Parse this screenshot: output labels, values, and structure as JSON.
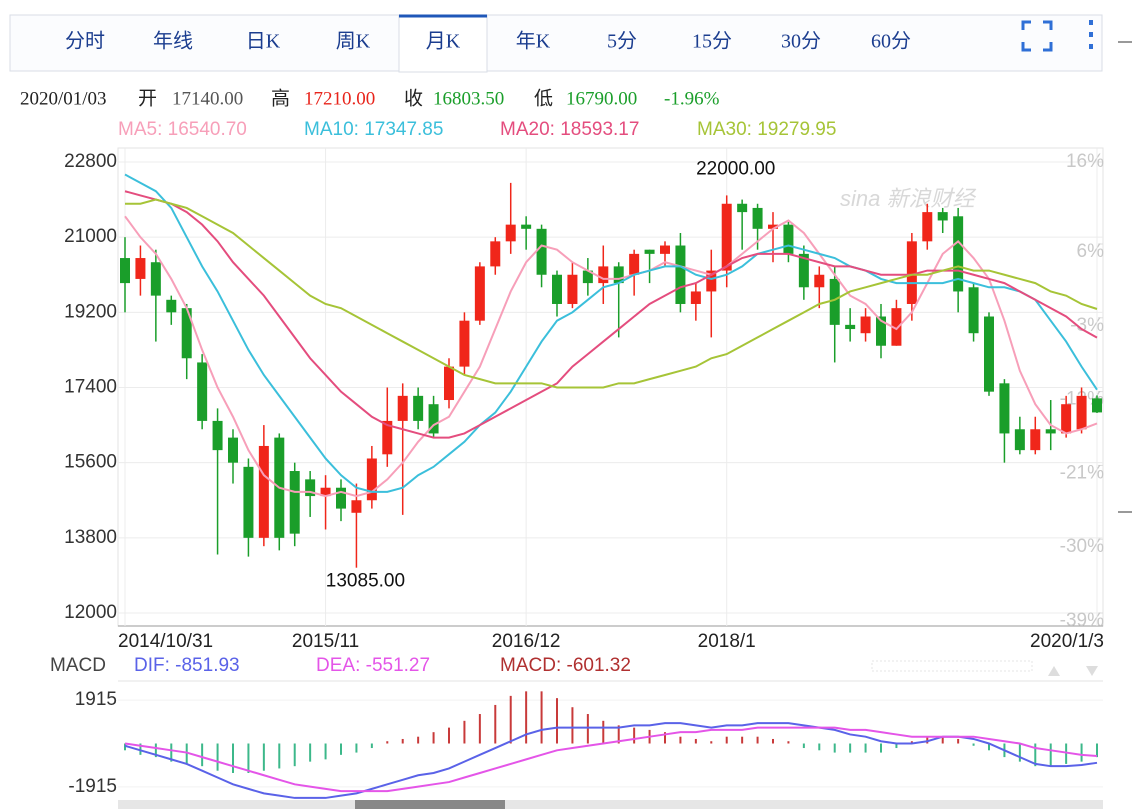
{
  "tabs": [
    "分时",
    "年线",
    "日K",
    "周K",
    "月K",
    "年K",
    "5分",
    "15分",
    "30分",
    "60分"
  ],
  "active_tab": 4,
  "info": {
    "date": "2020/01/03",
    "open_label": "开",
    "open": "17140.00",
    "high_label": "高",
    "high": "17210.00",
    "close_label": "收",
    "close": "16803.50",
    "low_label": "低",
    "low": "16790.00",
    "change": "-1.96%"
  },
  "watermark": "sina 新浪财经",
  "chart_data": [
    {
      "type": "candlestick",
      "categories": [
        "2014/10/31",
        null,
        null,
        null,
        null,
        null,
        null,
        null,
        null,
        null,
        null,
        null,
        null,
        "2015/11",
        null,
        null,
        null,
        null,
        null,
        null,
        null,
        null,
        null,
        null,
        null,
        null,
        "2016/12",
        null,
        null,
        null,
        null,
        null,
        null,
        null,
        null,
        null,
        null,
        null,
        null,
        "2018/1",
        null,
        null,
        null,
        null,
        null,
        null,
        null,
        null,
        null,
        null,
        null,
        null,
        null,
        null,
        null,
        null,
        null,
        null,
        null,
        null,
        null,
        null,
        null,
        "2020/1/3"
      ],
      "open": [
        20500,
        20000,
        20400,
        19500,
        19300,
        18000,
        16600,
        16200,
        15500,
        13800,
        16200,
        15400,
        15200,
        14800,
        15000,
        14400,
        14700,
        15800,
        16600,
        17200,
        17000,
        17100,
        17900,
        19000,
        20300,
        20900,
        21300,
        21200,
        20100,
        19400,
        20200,
        19900,
        20300,
        20100,
        20700,
        20600,
        20800,
        19400,
        19700,
        20200,
        21800,
        21700,
        21200,
        21300,
        20600,
        19800,
        20000,
        18900,
        18700,
        19100,
        18400,
        19400,
        20900,
        21600,
        21500,
        19800,
        19100,
        17500,
        16400,
        15900,
        16400,
        16300,
        16400,
        17140
      ],
      "high": [
        21000,
        20800,
        20700,
        19600,
        19400,
        18200,
        16900,
        16400,
        15700,
        16500,
        16300,
        15600,
        15400,
        15300,
        15200,
        15100,
        16000,
        17400,
        17500,
        17400,
        17200,
        18100,
        19200,
        20400,
        21000,
        22300,
        21500,
        21300,
        20200,
        20400,
        20500,
        20800,
        20400,
        20700,
        20700,
        20900,
        21100,
        19900,
        20700,
        22000,
        21900,
        21800,
        21600,
        21400,
        20800,
        20300,
        20300,
        19300,
        19300,
        19400,
        19500,
        21100,
        21800,
        21700,
        21700,
        19900,
        19200,
        17600,
        16700,
        16700,
        17100,
        17200,
        17400,
        17210
      ],
      "low": [
        19200,
        19600,
        18500,
        18900,
        17600,
        16400,
        13400,
        15100,
        13350,
        13600,
        13500,
        13600,
        14300,
        14000,
        14200,
        13085,
        14500,
        15500,
        14350,
        16400,
        16200,
        16900,
        17700,
        18900,
        20100,
        20600,
        20700,
        19800,
        19100,
        19300,
        19600,
        19400,
        18600,
        19600,
        19900,
        20300,
        19200,
        19000,
        18600,
        19800,
        20700,
        20700,
        20400,
        20400,
        19500,
        19300,
        18000,
        18500,
        18500,
        18100,
        18400,
        19000,
        20700,
        21100,
        19200,
        18500,
        17200,
        15600,
        15800,
        15800,
        15900,
        16200,
        16300,
        16790
      ],
      "close": [
        19900,
        20500,
        19600,
        19200,
        18100,
        16600,
        15900,
        15600,
        13800,
        16000,
        13800,
        13900,
        14800,
        15000,
        14500,
        14700,
        15700,
        16600,
        17200,
        16600,
        16300,
        17900,
        19000,
        20300,
        20900,
        21300,
        21200,
        20100,
        19400,
        20100,
        19900,
        20300,
        19900,
        20600,
        20600,
        20800,
        19400,
        19700,
        20200,
        21800,
        21600,
        21200,
        21300,
        20600,
        19800,
        20100,
        18900,
        18800,
        19100,
        18400,
        19300,
        20900,
        21600,
        21400,
        19700,
        18700,
        17300,
        16300,
        15900,
        16400,
        16300,
        17000,
        17200,
        16803.5
      ],
      "up_color": "#f0261a",
      "down_color": "#1a9e2a",
      "series": [
        {
          "name": "MA5: 16540.70",
          "color": "#f79fb9",
          "values": [
            21500,
            21000,
            20600,
            20000,
            19300,
            18300,
            17400,
            16700,
            15900,
            15300,
            15000,
            14900,
            14900,
            14800,
            14900,
            14800,
            14900,
            15200,
            15600,
            16100,
            16500,
            16700,
            17300,
            17900,
            18800,
            19700,
            20400,
            20800,
            20700,
            20400,
            20200,
            20000,
            20000,
            20100,
            20200,
            20400,
            20300,
            20200,
            20100,
            20300,
            20600,
            20900,
            21200,
            21400,
            21100,
            20600,
            20100,
            19600,
            19400,
            19000,
            18800,
            19200,
            19900,
            20600,
            20900,
            20500,
            20000,
            19000,
            17800,
            17000,
            16500,
            16300,
            16400,
            16540.7
          ]
        },
        {
          "name": "MA10: 17347.85",
          "color": "#3bbfdb",
          "values": [
            22500,
            22300,
            22100,
            21700,
            21000,
            20300,
            19700,
            19000,
            18300,
            17700,
            17200,
            16700,
            16200,
            15700,
            15300,
            15000,
            14900,
            14900,
            15000,
            15300,
            15500,
            15800,
            16100,
            16500,
            16800,
            17300,
            17900,
            18500,
            19000,
            19200,
            19500,
            19800,
            19900,
            20100,
            20200,
            20300,
            20300,
            20100,
            20000,
            20100,
            20300,
            20600,
            20700,
            20800,
            20700,
            20600,
            20500,
            20300,
            20200,
            20000,
            19900,
            19900,
            19900,
            19900,
            20000,
            19900,
            19800,
            19800,
            19700,
            19500,
            19000,
            18500,
            17900,
            17347.85
          ]
        },
        {
          "name": "MA20: 18593.17",
          "color": "#e44d7e",
          "values": [
            22100,
            22000,
            21900,
            21800,
            21600,
            21300,
            20900,
            20400,
            20000,
            19600,
            19100,
            18600,
            18100,
            17700,
            17300,
            17000,
            16700,
            16500,
            16400,
            16300,
            16200,
            16200,
            16300,
            16500,
            16700,
            16900,
            17100,
            17300,
            17500,
            17900,
            18200,
            18500,
            18800,
            19100,
            19400,
            19600,
            19800,
            19900,
            20100,
            20300,
            20500,
            20600,
            20600,
            20600,
            20500,
            20400,
            20300,
            20300,
            20200,
            20100,
            20100,
            20100,
            20200,
            20200,
            20200,
            20100,
            20000,
            19900,
            19700,
            19500,
            19300,
            19100,
            18800,
            18593.17
          ]
        },
        {
          "name": "MA30: 19279.95",
          "color": "#a6c437",
          "values": [
            21800,
            21800,
            21900,
            21800,
            21700,
            21500,
            21300,
            21100,
            20800,
            20500,
            20200,
            19900,
            19600,
            19400,
            19300,
            19100,
            18900,
            18700,
            18500,
            18300,
            18100,
            17900,
            17700,
            17600,
            17500,
            17500,
            17500,
            17500,
            17400,
            17400,
            17400,
            17400,
            17500,
            17500,
            17600,
            17700,
            17800,
            17900,
            18100,
            18200,
            18400,
            18600,
            18800,
            19000,
            19200,
            19400,
            19500,
            19700,
            19800,
            19900,
            20000,
            20100,
            20100,
            20200,
            20300,
            20200,
            20200,
            20100,
            20000,
            19900,
            19700,
            19600,
            19400,
            19279.95
          ]
        }
      ],
      "ylim": [
        12000,
        22800
      ],
      "yticks": [
        22800,
        21000,
        19200,
        17400,
        15600,
        13800,
        12000
      ],
      "y2lim": [
        -39,
        16
      ],
      "y2ticks": [
        {
          "value": 16,
          "label": "16%"
        },
        {
          "value": 6,
          "label": "6%"
        },
        {
          "value": -3,
          "label": "-3%"
        },
        {
          "value": -12,
          "label": "-12%"
        },
        {
          "value": -21,
          "label": "-21%"
        },
        {
          "value": -30,
          "label": "-30%"
        },
        {
          "value": -39,
          "label": "-39%"
        }
      ],
      "annotations": [
        {
          "text": "22000.00",
          "index": 39,
          "value": 22000
        },
        {
          "text": "13085.00",
          "index": 15,
          "value": 13085
        }
      ],
      "grid": true
    },
    {
      "type": "macd",
      "title": "MACD",
      "series": [
        {
          "name": "DIF: -851.93",
          "color": "#5a62e8",
          "values": [
            -100,
            -300,
            -500,
            -700,
            -900,
            -1200,
            -1500,
            -1800,
            -2000,
            -2200,
            -2300,
            -2400,
            -2400,
            -2400,
            -2300,
            -2200,
            -2000,
            -1800,
            -1600,
            -1400,
            -1300,
            -1100,
            -800,
            -500,
            -200,
            100,
            400,
            600,
            700,
            700,
            700,
            700,
            700,
            800,
            800,
            900,
            900,
            800,
            700,
            800,
            800,
            900,
            900,
            900,
            800,
            700,
            600,
            400,
            300,
            100,
            0,
            0,
            100,
            300,
            300,
            200,
            0,
            -300,
            -600,
            -900,
            -1000,
            -1000,
            -950,
            -851.93
          ]
        },
        {
          "name": "DEA: -551.27",
          "color": "#e455e8",
          "values": [
            0,
            -100,
            -200,
            -300,
            -400,
            -600,
            -800,
            -1000,
            -1200,
            -1400,
            -1600,
            -1800,
            -1900,
            -2000,
            -2100,
            -2100,
            -2100,
            -2100,
            -2000,
            -1900,
            -1800,
            -1700,
            -1500,
            -1300,
            -1100,
            -900,
            -700,
            -500,
            -300,
            -200,
            -100,
            0,
            100,
            200,
            300,
            400,
            500,
            500,
            600,
            600,
            600,
            700,
            700,
            700,
            700,
            700,
            700,
            600,
            600,
            500,
            400,
            300,
            300,
            300,
            300,
            300,
            200,
            100,
            0,
            -200,
            -300,
            -400,
            -500,
            -551.27
          ]
        }
      ],
      "bars": {
        "name": "MACD: -601.32",
        "color": "#b03030",
        "up_color": "#c83a3a",
        "down_color": "#3cb88a",
        "values": [
          -300,
          -500,
          -600,
          -800,
          -900,
          -1000,
          -1200,
          -1300,
          -1300,
          -1200,
          -1100,
          -1000,
          -800,
          -700,
          -500,
          -400,
          -200,
          100,
          200,
          300,
          500,
          700,
          1000,
          1300,
          1700,
          2100,
          2300,
          2300,
          2000,
          1600,
          1300,
          1000,
          800,
          700,
          600,
          500,
          300,
          200,
          100,
          300,
          300,
          300,
          200,
          100,
          -200,
          -300,
          -400,
          -400,
          -400,
          -400,
          -200,
          100,
          300,
          300,
          200,
          -100,
          -300,
          -600,
          -800,
          -1000,
          -1000,
          -900,
          -800,
          -601.32
        ]
      },
      "ylim": [
        -2800,
        2800
      ],
      "yticks": [
        1915,
        -1915
      ]
    }
  ]
}
